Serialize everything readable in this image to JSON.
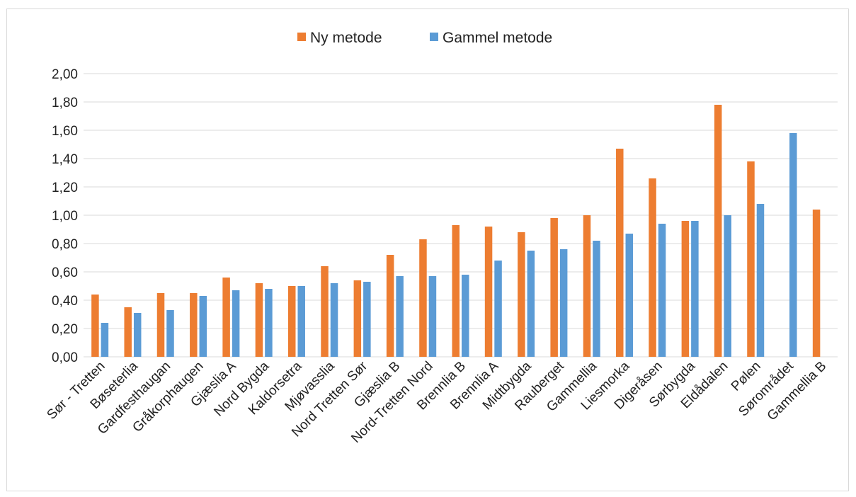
{
  "chart_data": {
    "type": "bar",
    "categories": [
      "Sør - Tretten",
      "Bøseterlia",
      "Gardfesthaugan",
      "Gråkorphaugen",
      "Gjæslia A",
      "Nord Bygda",
      "Kaldorsetra",
      "Mjøvasslia",
      "Nord Tretten Sør",
      "Gjæslia B",
      "Nord-Tretten Nord",
      "Brennlia B",
      "Brennlia A",
      "Midtbygda",
      "Rauberget",
      "Gammellia",
      "Liesmorka",
      "Digeråsen",
      "Sørbygda",
      "Eldådalen",
      "Pølen",
      "Sørområdet",
      "Gammellia B"
    ],
    "series": [
      {
        "name": "Ny metode",
        "color": "#ed7d31",
        "values": [
          0.44,
          0.35,
          0.45,
          0.45,
          0.56,
          0.52,
          0.5,
          0.64,
          0.54,
          0.72,
          0.83,
          0.93,
          0.92,
          0.88,
          0.98,
          1.0,
          1.47,
          1.26,
          0.96,
          1.78,
          1.38,
          null,
          1.04
        ]
      },
      {
        "name": "Gammel metode",
        "color": "#5b9bd5",
        "values": [
          0.24,
          0.31,
          0.33,
          0.43,
          0.47,
          0.48,
          0.5,
          0.52,
          0.53,
          0.57,
          0.57,
          0.58,
          0.68,
          0.75,
          0.76,
          0.82,
          0.87,
          0.94,
          0.96,
          1.0,
          1.08,
          1.58,
          null
        ]
      }
    ],
    "yticks": [
      "0,00",
      "0,20",
      "0,40",
      "0,60",
      "0,80",
      "1,00",
      "1,20",
      "1,40",
      "1,60",
      "1,80",
      "2,00"
    ],
    "ylim": [
      0,
      2.0
    ],
    "grid": true,
    "legend_position": "top",
    "gridline_color": "#d9d9d9"
  }
}
